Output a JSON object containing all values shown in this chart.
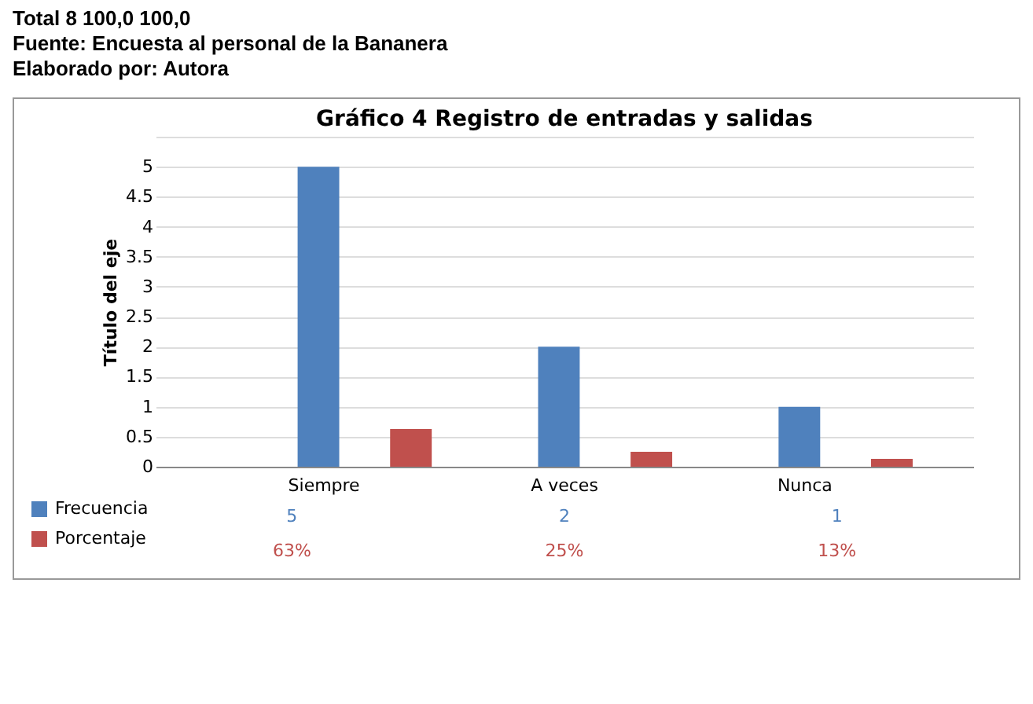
{
  "chart_data": {
    "type": "bar",
    "title": "Gráfico 4 Registro de  entradas y salidas",
    "ylabel": "Título del eje",
    "categories": [
      "Siempre",
      "A veces",
      "Nunca"
    ],
    "series": [
      {
        "name": "Frecuencia",
        "color": "#4f81bd",
        "values": [
          5,
          2,
          1
        ],
        "value_labels": [
          "5",
          "2",
          "1"
        ]
      },
      {
        "name": "Porcentaje",
        "color": "#c0504d",
        "values": [
          0.63,
          0.25,
          0.13
        ],
        "value_labels": [
          "63%",
          "25%",
          "13%"
        ]
      }
    ],
    "ylim": [
      0,
      5.5
    ],
    "yticks": [
      0,
      0.5,
      1,
      1.5,
      2,
      2.5,
      3,
      3.5,
      4,
      4.5,
      5,
      {
        "value": 5.5,
        "label": null
      }
    ],
    "grid": "y",
    "legend": "bottom",
    "annotations": [
      "Total 8 100,0 100,0",
      "Fuente: Encuesta al personal de la Bananera",
      "Elaborado por: Autora"
    ]
  }
}
